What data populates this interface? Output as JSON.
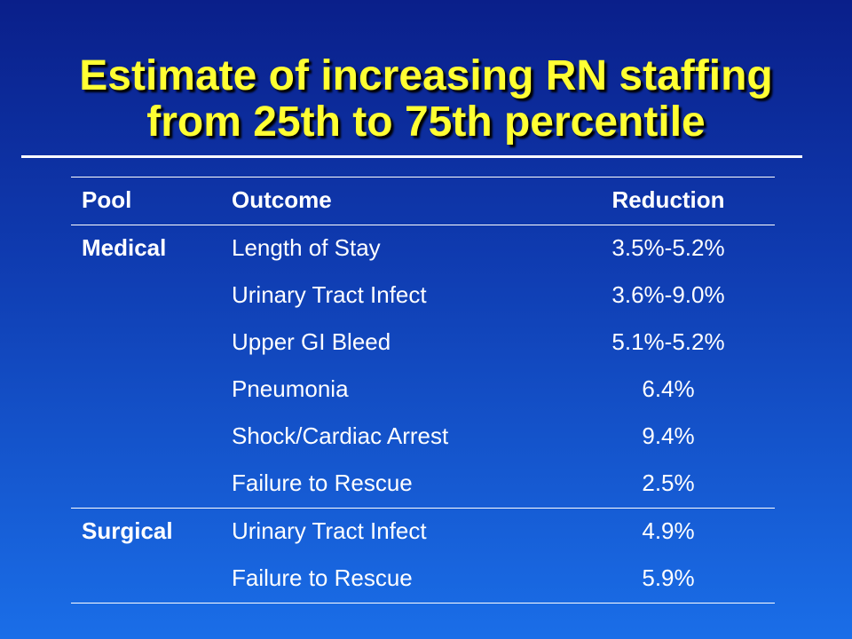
{
  "slide": {
    "title_line1": "Estimate of increasing RN staffing",
    "title_line2": "from 25th to 75th percentile"
  },
  "table": {
    "headers": {
      "pool": "Pool",
      "outcome": "Outcome",
      "reduction": "Reduction"
    },
    "rows": [
      {
        "pool": "Medical",
        "outcome": "Length of Stay",
        "reduction": "3.5%-5.2%"
      },
      {
        "pool": "",
        "outcome": "Urinary Tract Infect",
        "reduction": "3.6%-9.0%"
      },
      {
        "pool": "",
        "outcome": "Upper GI Bleed",
        "reduction": "5.1%-5.2%"
      },
      {
        "pool": "",
        "outcome": "Pneumonia",
        "reduction": "6.4%"
      },
      {
        "pool": "",
        "outcome": "Shock/Cardiac Arrest",
        "reduction": "9.4%"
      },
      {
        "pool": "",
        "outcome": "Failure to Rescue",
        "reduction": "2.5%"
      },
      {
        "pool": "Surgical",
        "outcome": "Urinary Tract Infect",
        "reduction": "4.9%"
      },
      {
        "pool": "",
        "outcome": "Failure to Rescue",
        "reduction": "5.9%"
      }
    ]
  },
  "colors": {
    "title": "#ffff33",
    "background_top": "#0a1f8a",
    "background_bottom": "#1a6ee8",
    "text": "#ffffff"
  }
}
